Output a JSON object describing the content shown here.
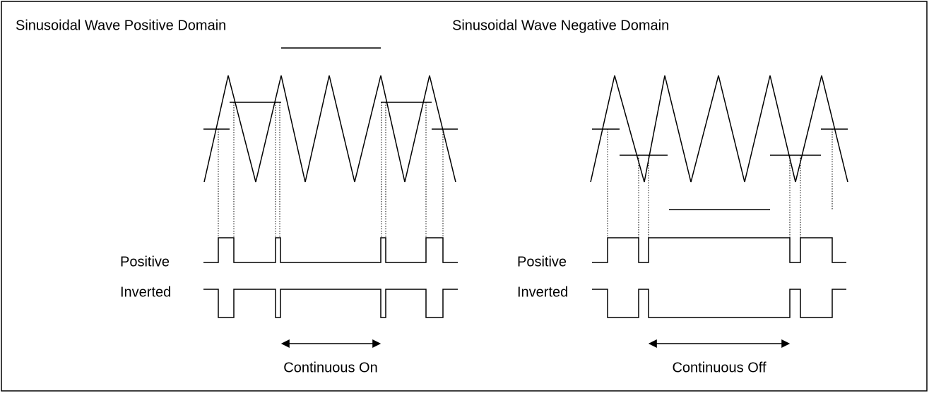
{
  "left": {
    "title": "Sinusoidal Wave Positive Domain",
    "positive_label": "Positive",
    "inverted_label": "Inverted",
    "arrow_label": "Continuous On"
  },
  "right": {
    "title": "Sinusoidal Wave Negative Domain",
    "positive_label": "Positive",
    "inverted_label": "Inverted",
    "arrow_label": "Continuous Off"
  }
}
